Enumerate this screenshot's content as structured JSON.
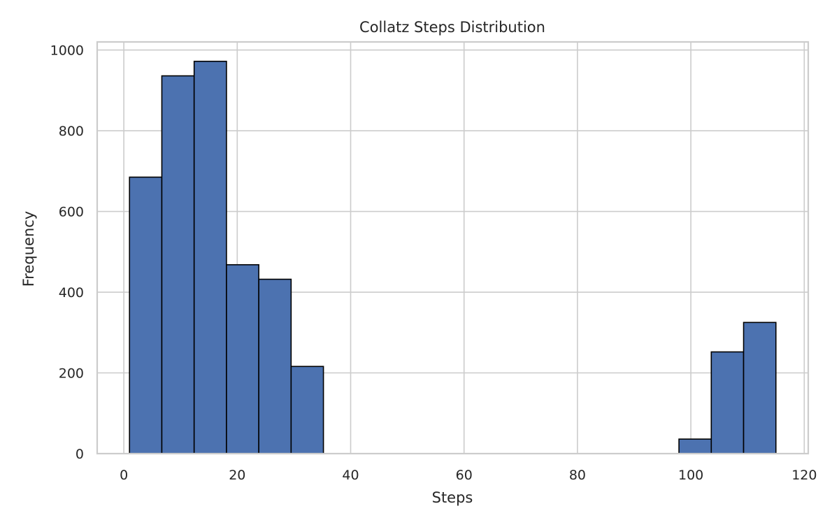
{
  "chart_data": {
    "type": "bar",
    "subtype": "histogram",
    "title": "Collatz Steps Distribution",
    "xlabel": "Steps",
    "ylabel": "Frequency",
    "xlim": [
      -4.7,
      120.7
    ],
    "ylim": [
      0,
      1020
    ],
    "xticks": [
      0,
      20,
      40,
      60,
      80,
      100,
      120
    ],
    "yticks": [
      0,
      200,
      400,
      600,
      800,
      1000
    ],
    "grid": true,
    "bar_color": "#4c72b0",
    "edge_color": "#000000",
    "grid_color": "#cccccc",
    "spine_color": "#cccccc",
    "bins": [
      {
        "x0": 1.0,
        "x1": 6.7,
        "value": 685
      },
      {
        "x0": 6.7,
        "x1": 12.4,
        "value": 936
      },
      {
        "x0": 12.4,
        "x1": 18.1,
        "value": 972
      },
      {
        "x0": 18.1,
        "x1": 23.8,
        "value": 468
      },
      {
        "x0": 23.8,
        "x1": 29.5,
        "value": 432
      },
      {
        "x0": 29.5,
        "x1": 35.2,
        "value": 216
      },
      {
        "x0": 35.2,
        "x1": 40.9,
        "value": 0
      },
      {
        "x0": 40.9,
        "x1": 46.6,
        "value": 0
      },
      {
        "x0": 46.6,
        "x1": 52.3,
        "value": 0
      },
      {
        "x0": 52.3,
        "x1": 58.0,
        "value": 0
      },
      {
        "x0": 58.0,
        "x1": 63.7,
        "value": 0
      },
      {
        "x0": 63.7,
        "x1": 69.4,
        "value": 0
      },
      {
        "x0": 69.4,
        "x1": 75.1,
        "value": 0
      },
      {
        "x0": 75.1,
        "x1": 80.8,
        "value": 0
      },
      {
        "x0": 80.8,
        "x1": 86.5,
        "value": 0
      },
      {
        "x0": 86.5,
        "x1": 92.2,
        "value": 0
      },
      {
        "x0": 92.2,
        "x1": 97.9,
        "value": 0
      },
      {
        "x0": 97.9,
        "x1": 103.6,
        "value": 36
      },
      {
        "x0": 103.6,
        "x1": 109.3,
        "value": 252
      },
      {
        "x0": 109.3,
        "x1": 115.0,
        "value": 325
      }
    ]
  }
}
